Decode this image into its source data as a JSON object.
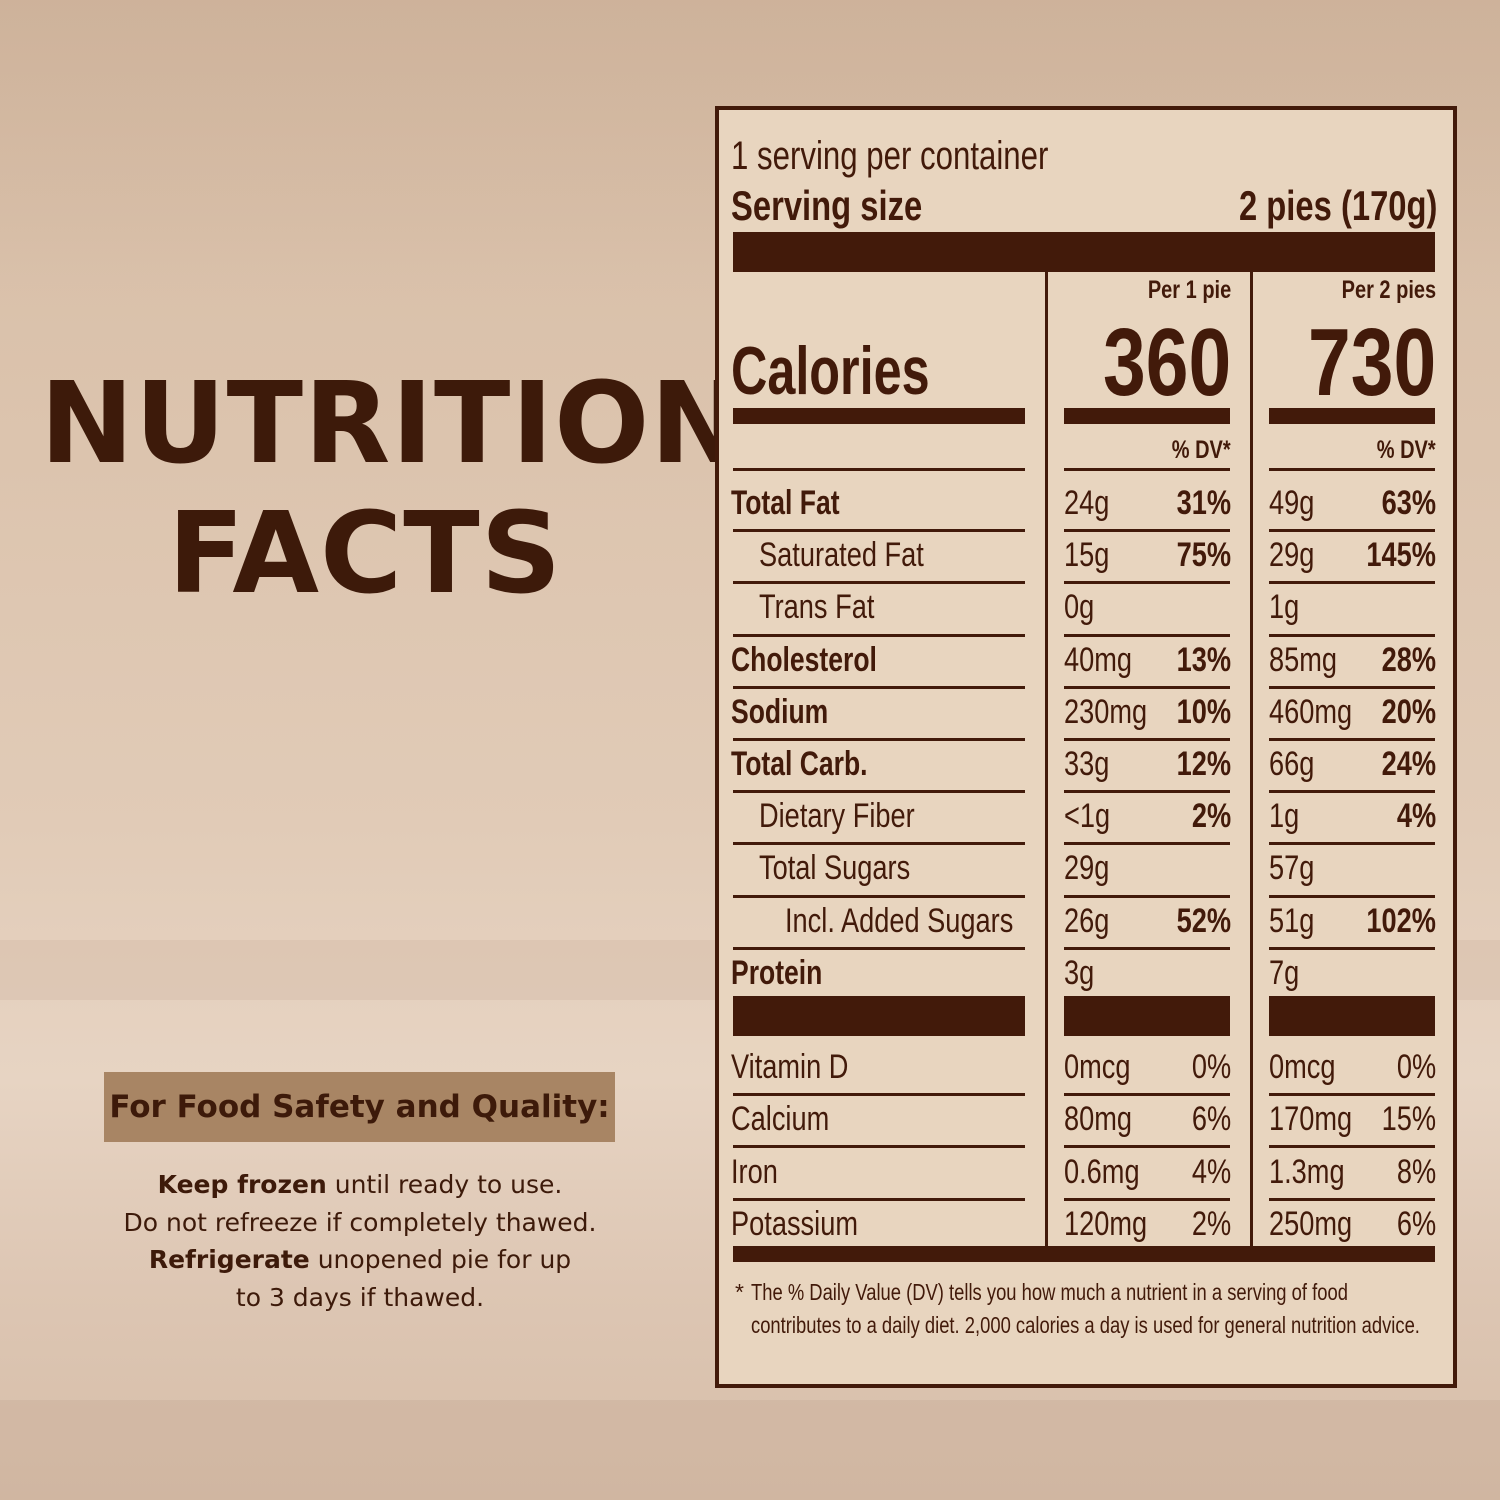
{
  "left_panel": {
    "title_line1": "NUTRITION",
    "title_line2": "FACTS",
    "safety_heading": "For Food Safety and Quality:",
    "safety_lines": [
      {
        "bold": "Keep frozen",
        "rest": " until ready to use."
      },
      {
        "bold": "",
        "rest": "Do not refreeze if completely thawed."
      },
      {
        "bold": "Refrigerate",
        "rest": " unopened pie for up"
      },
      {
        "bold": "",
        "rest": "to 3 days if thawed."
      }
    ]
  },
  "label": {
    "servings_per_container": "1 serving per container",
    "serving_size_label": "Serving size",
    "serving_size_value": "2 pies (170g)",
    "col1_header": "Per 1 pie",
    "col2_header": "Per 2 pies",
    "calories_label": "Calories",
    "calories_col1": "360",
    "calories_col2": "730",
    "dv_header": "% DV*",
    "nutrients": [
      {
        "name": "Total Fat",
        "bold": true,
        "indent": 0,
        "a1": "24g",
        "p1": "31%",
        "a2": "49g",
        "p2": "63%"
      },
      {
        "name": "Saturated Fat",
        "bold": false,
        "indent": 1,
        "a1": "15g",
        "p1": "75%",
        "a2": "29g",
        "p2": "145%"
      },
      {
        "name": "Trans Fat",
        "bold": false,
        "indent": 1,
        "a1": "0g",
        "p1": "",
        "a2": "1g",
        "p2": ""
      },
      {
        "name": "Cholesterol",
        "bold": true,
        "indent": 0,
        "a1": "40mg",
        "p1": "13%",
        "a2": "85mg",
        "p2": "28%"
      },
      {
        "name": "Sodium",
        "bold": true,
        "indent": 0,
        "a1": "230mg",
        "p1": "10%",
        "a2": "460mg",
        "p2": "20%"
      },
      {
        "name": "Total Carb.",
        "bold": true,
        "indent": 0,
        "a1": "33g",
        "p1": "12%",
        "a2": "66g",
        "p2": "24%"
      },
      {
        "name": "Dietary Fiber",
        "bold": false,
        "indent": 1,
        "a1": "<1g",
        "p1": "2%",
        "a2": "1g",
        "p2": "4%"
      },
      {
        "name": "Total Sugars",
        "bold": false,
        "indent": 1,
        "a1": "29g",
        "p1": "",
        "a2": "57g",
        "p2": ""
      },
      {
        "name": "Incl. Added Sugars",
        "bold": false,
        "indent": 2,
        "a1": "26g",
        "p1": "52%",
        "a2": "51g",
        "p2": "102%"
      },
      {
        "name": "Protein",
        "bold": true,
        "indent": 0,
        "a1": "3g",
        "p1": "",
        "a2": "7g",
        "p2": ""
      }
    ],
    "vitamins": [
      {
        "name": "Vitamin D",
        "a1": "0mcg",
        "p1": "0%",
        "a2": "0mcg",
        "p2": "0%"
      },
      {
        "name": "Calcium",
        "a1": "80mg",
        "p1": "6%",
        "a2": "170mg",
        "p2": "15%"
      },
      {
        "name": "Iron",
        "a1": "0.6mg",
        "p1": "4%",
        "a2": "1.3mg",
        "p2": "8%"
      },
      {
        "name": "Potassium",
        "a1": "120mg",
        "p1": "2%",
        "a2": "250mg",
        "p2": "6%"
      }
    ],
    "footnote_star": "*",
    "footnote": "The % Daily Value (DV) tells you how much a nutrient in a serving of food contributes to a daily diet. 2,000 calories a day is used for general nutrition advice."
  },
  "colors": {
    "brown_dark": "#421a0a",
    "label_bg": "#e8d5bf",
    "safety_box": "#a88564"
  }
}
